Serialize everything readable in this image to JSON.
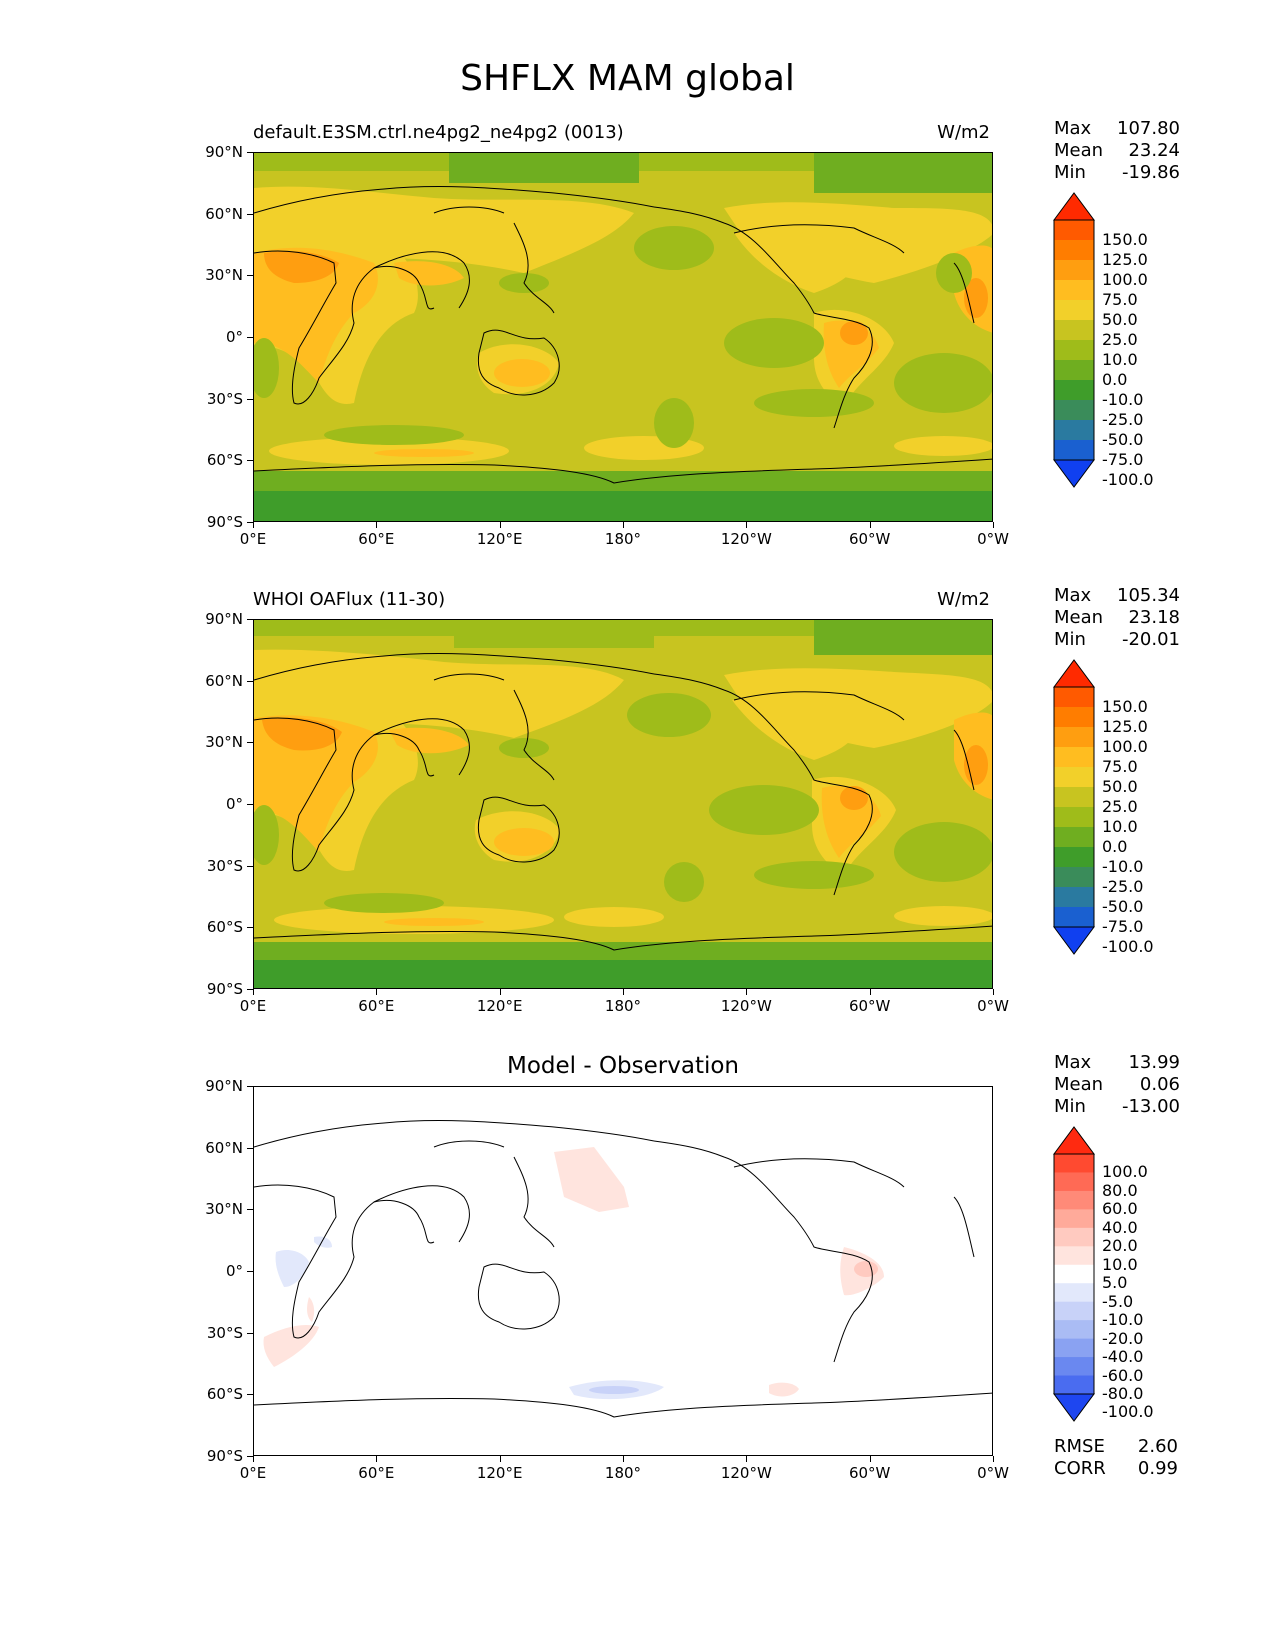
{
  "figure_title": "SHFLX MAM global",
  "panels": [
    {
      "id": "model",
      "subtitle": "default.E3SM.ctrl.ne4pg2_ne4pg2 (0013)",
      "units": "W/m2",
      "center_title": "",
      "stats": {
        "max_label": "Max",
        "max": "107.80",
        "mean_label": "Mean",
        "mean": "23.24",
        "min_label": "Min",
        "min": "-19.86"
      },
      "colorbar_labels": [
        "150.0",
        "125.0",
        "100.0",
        "75.0",
        "50.0",
        "25.0",
        "10.0",
        "0.0",
        "-10.0",
        "-25.0",
        "-50.0",
        "-75.0",
        "-100.0"
      ],
      "colorbar_colors": [
        "#ff2a00",
        "#ff5a00",
        "#ff7d00",
        "#ff9e10",
        "#ffbd20",
        "#f2d02a",
        "#c8c420",
        "#9fbc1a",
        "#6fae20",
        "#3f9d2a",
        "#3a8c5a",
        "#2a7aa0",
        "#1a60d0",
        "#1040f0"
      ]
    },
    {
      "id": "obs",
      "subtitle": "WHOI OAFlux (11-30)",
      "units": "W/m2",
      "center_title": "",
      "stats": {
        "max_label": "Max",
        "max": "105.34",
        "mean_label": "Mean",
        "mean": "23.18",
        "min_label": "Min",
        "min": "-20.01"
      },
      "colorbar_labels": [
        "150.0",
        "125.0",
        "100.0",
        "75.0",
        "50.0",
        "25.0",
        "10.0",
        "0.0",
        "-10.0",
        "-25.0",
        "-50.0",
        "-75.0",
        "-100.0"
      ],
      "colorbar_colors": [
        "#ff2a00",
        "#ff5a00",
        "#ff7d00",
        "#ff9e10",
        "#ffbd20",
        "#f2d02a",
        "#c8c420",
        "#9fbc1a",
        "#6fae20",
        "#3f9d2a",
        "#3a8c5a",
        "#2a7aa0",
        "#1a60d0",
        "#1040f0"
      ]
    },
    {
      "id": "diff",
      "subtitle": "",
      "units": "",
      "center_title": "Model - Observation",
      "stats": {
        "max_label": "Max",
        "max": "13.99",
        "mean_label": "Mean",
        "mean": "0.06",
        "min_label": "Min",
        "min": "-13.00"
      },
      "colorbar_labels": [
        "100.0",
        "80.0",
        "60.0",
        "40.0",
        "20.0",
        "10.0",
        "5.0",
        "-5.0",
        "-10.0",
        "-20.0",
        "-40.0",
        "-60.0",
        "-80.0",
        "-100.0"
      ],
      "colorbar_colors": [
        "#ff2a10",
        "#ff4a30",
        "#ff6a55",
        "#ff8a78",
        "#ffaa9a",
        "#ffcac0",
        "#ffe4de",
        "#ffffff",
        "#e2e8fb",
        "#c8d2f8",
        "#aabcf4",
        "#8aa2f2",
        "#6a88f0",
        "#4a6cf0",
        "#1e46f0"
      ],
      "rmse_label": "RMSE",
      "rmse": "2.60",
      "corr_label": "CORR",
      "corr": "0.99"
    }
  ],
  "x_tick_labels": [
    "0°E",
    "60°E",
    "120°E",
    "180°",
    "120°W",
    "60°W",
    "0°W"
  ],
  "y_tick_labels": [
    "90°N",
    "60°N",
    "30°N",
    "0°",
    "30°S",
    "60°S",
    "90°S"
  ]
}
